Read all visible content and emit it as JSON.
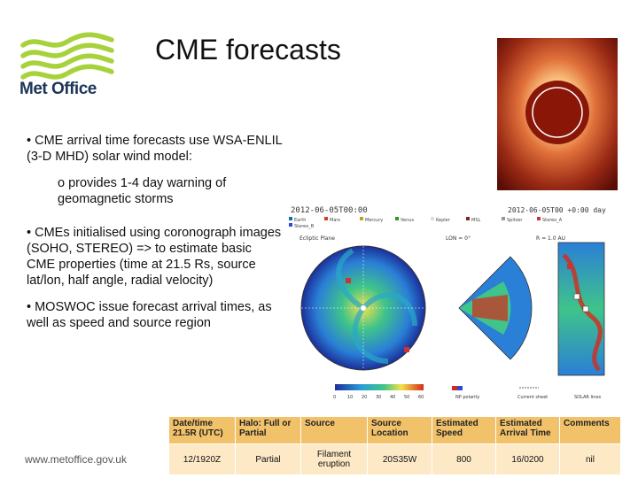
{
  "logo": {
    "text": "Met Office"
  },
  "slide": {
    "title": "CME forecasts"
  },
  "bullets": {
    "b1": "• CME arrival time forecasts use WSA-ENLIL (3-D MHD) solar wind model:",
    "b1_sub": "o provides 1-4 day warning of geomagnetic storms",
    "b2": "• CMEs initialised using coronograph images (SOHO, STEREO) => to estimate basic CME properties (time at 21.5 Rs, source lat/lon, half angle, radial velocity)",
    "b3": "• MOSWOC issue forecast arrival times, as well as speed and source region"
  },
  "simulation": {
    "time_left": "2012-06-05T00:00",
    "time_right": "2012-06-05T00 +0:00 day",
    "legend": [
      "Earth",
      "Mars",
      "Mercury",
      "Venus",
      "Kepler",
      "MSL",
      "Spitzer",
      "Stereo_A",
      "Stereo_B"
    ],
    "panel_left_label": "Ecliptic Plane",
    "panel_mid_label": "LON = 0°",
    "panel_right_label": "R = 1.0 AU",
    "colorbar_values": [
      "0",
      "10",
      "20",
      "30",
      "40",
      "50",
      "60"
    ],
    "bottom_labels": [
      "NP polarity",
      "Current sheet",
      "SOLAR lines"
    ]
  },
  "table": {
    "headers": [
      "Date/time 21.5R (UTC)",
      "Halo: Full or Partial",
      "Source",
      "Source Location",
      "Estimated Speed",
      "Estimated Arrival Time",
      "Comments"
    ],
    "row": [
      "12/1920Z",
      "Partial",
      "Filament eruption",
      "20S35W",
      "800",
      "16/0200",
      "nil"
    ]
  },
  "footer": {
    "url": "www.metoffice.gov.uk"
  },
  "colors": {
    "logo_green": "#a8d23c",
    "logo_navy": "#1d3557",
    "table_header": "#f2c26b",
    "table_cell": "#fde9c6"
  }
}
